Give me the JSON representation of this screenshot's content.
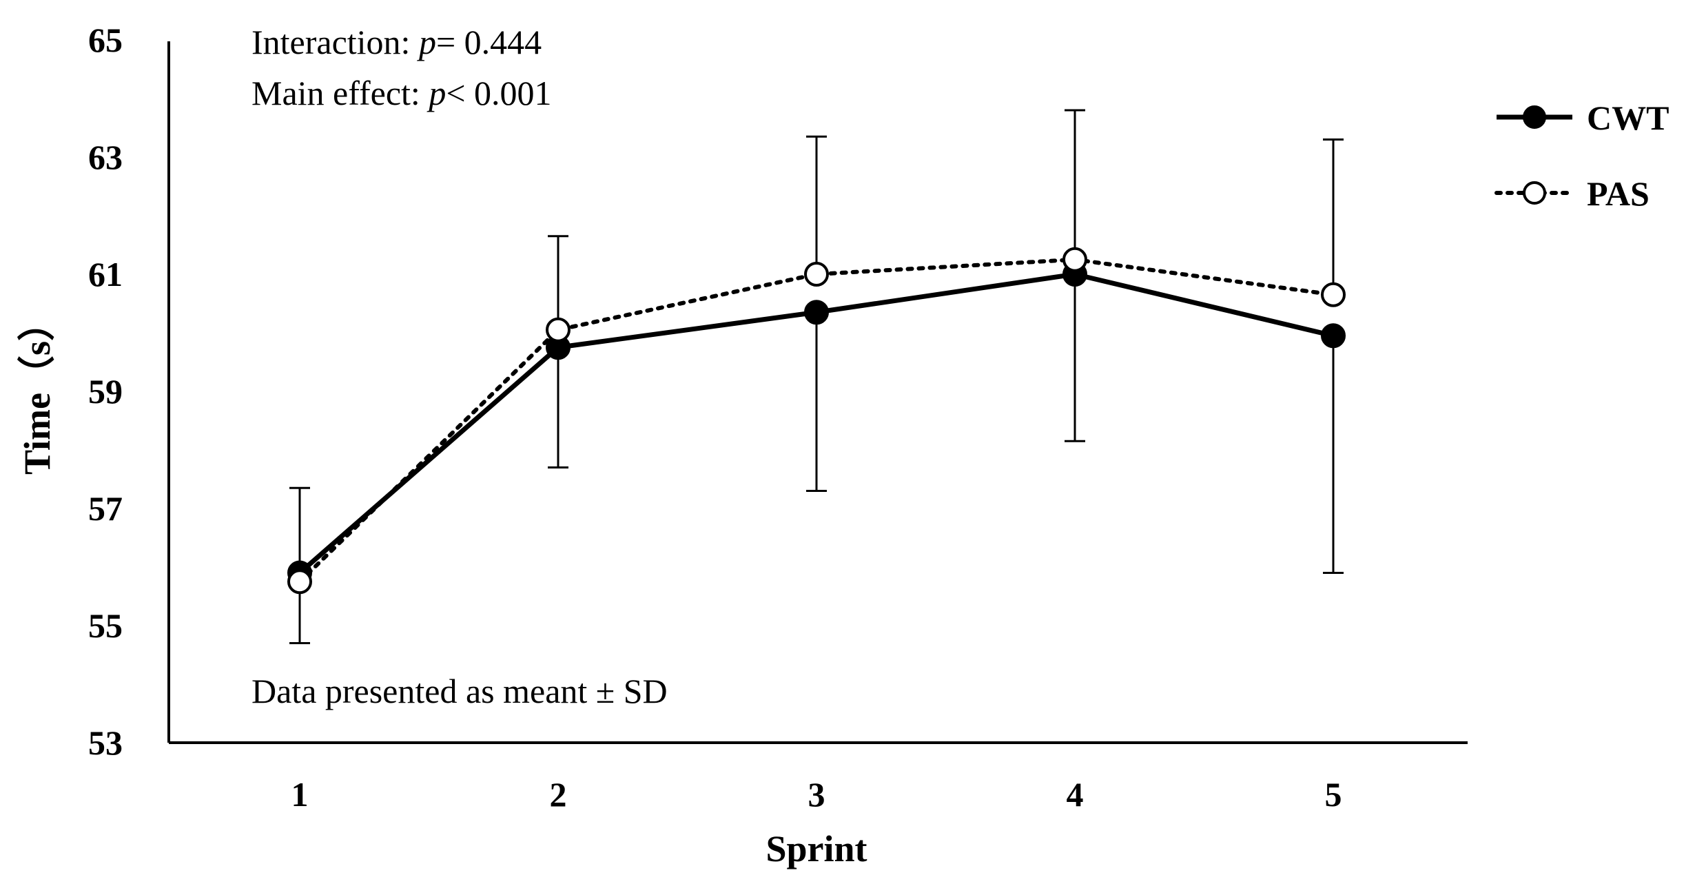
{
  "chart_data": {
    "type": "line",
    "xlabel": "Sprint",
    "ylabel": "Time（s）",
    "categories": [
      "1",
      "2",
      "3",
      "4",
      "5"
    ],
    "ylim": [
      53,
      65
    ],
    "yticks": [
      "53",
      "55",
      "57",
      "59",
      "61",
      "63",
      "65"
    ],
    "legend_position": "right",
    "series": [
      {
        "name": "CWT",
        "style": "solid line, filled circle markers",
        "color": "#000000",
        "values": [
          55.9,
          59.75,
          60.35,
          61.0,
          59.95
        ],
        "sd": [
          1.45,
          2.05,
          3.05,
          2.85,
          4.05
        ]
      },
      {
        "name": "PAS",
        "style": "dotted line, open circle markers",
        "color": "#000000",
        "values": [
          55.75,
          60.05,
          61.0,
          61.25,
          60.65
        ],
        "sd": [
          1.05,
          1.6,
          2.35,
          2.55,
          2.65
        ]
      }
    ],
    "annotations": {
      "interaction_label": "Interaction: ",
      "interaction_p": "p",
      "interaction_value": "= 0.444",
      "main_effect_label": "Main effect: ",
      "main_effect_p": "p",
      "main_effect_value": "< 0.001",
      "data_note": "Data presented as meant  ± SD"
    }
  }
}
